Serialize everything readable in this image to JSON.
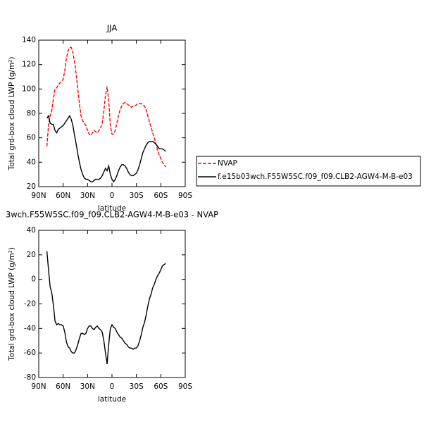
{
  "chart_data": [
    {
      "type": "line",
      "title": "JJA",
      "x_label": "latitude",
      "y_label": "Total grd-box cloud LWP (g/m²)",
      "x": [
        80,
        78,
        76,
        74,
        72,
        70,
        68,
        66,
        64,
        62,
        60,
        58,
        56,
        54,
        52,
        50,
        48,
        46,
        44,
        42,
        40,
        38,
        36,
        34,
        32,
        30,
        28,
        26,
        24,
        22,
        20,
        18,
        16,
        14,
        12,
        10,
        8,
        6,
        4,
        2,
        0,
        -2,
        -4,
        -6,
        -8,
        -10,
        -12,
        -14,
        -16,
        -18,
        -20,
        -22,
        -24,
        -26,
        -28,
        -30,
        -32,
        -34,
        -36,
        -38,
        -40,
        -42,
        -44,
        -46,
        -48,
        -50,
        -52,
        -54,
        -56,
        -58,
        -60,
        -62,
        -64,
        -66
      ],
      "series": [
        {
          "name": "NVAP",
          "color": "#ff0000",
          "style": "dashed",
          "values": [
            53,
            70,
            78,
            82,
            92,
            100,
            101,
            103,
            105,
            106,
            108,
            115,
            125,
            131,
            134,
            134,
            130,
            122,
            112,
            100,
            88,
            78,
            74,
            72,
            70,
            66,
            63,
            62,
            64,
            66,
            65,
            64,
            66,
            68,
            72,
            82,
            95,
            102,
            90,
            70,
            63,
            63,
            66,
            72,
            78,
            83,
            86,
            88,
            89,
            88,
            87,
            86,
            85,
            86,
            86,
            87,
            88,
            88,
            88,
            87,
            86,
            83,
            78,
            73,
            69,
            64,
            60,
            55,
            50,
            46,
            43,
            40,
            38,
            36
          ]
        },
        {
          "name": "f.e15b03wch.F55W5SC.f09_f09.CLB2-AGW4-M-B-e03",
          "color": "#000000",
          "style": "solid",
          "values": [
            76,
            78,
            72,
            71,
            71,
            66,
            64,
            67,
            68,
            69,
            70,
            72,
            74,
            76,
            78,
            75,
            70,
            62,
            55,
            47,
            40,
            34,
            30,
            27,
            26,
            26,
            25,
            24,
            24,
            25,
            26,
            26,
            26,
            27,
            29,
            32,
            35,
            33,
            37,
            30,
            26,
            24,
            26,
            29,
            33,
            36,
            38,
            38,
            37,
            35,
            32,
            30,
            29,
            29,
            30,
            31,
            34,
            38,
            43,
            48,
            51,
            54,
            56,
            57,
            57,
            57,
            56,
            55,
            53,
            51,
            51,
            51,
            50,
            49
          ]
        }
      ],
      "xlim": [
        90,
        -90
      ],
      "xticks": [
        {
          "value": 90,
          "label": "90N"
        },
        {
          "value": 60,
          "label": "60N"
        },
        {
          "value": 30,
          "label": "30N"
        },
        0,
        {
          "value": -30,
          "label": "30S"
        },
        {
          "value": -60,
          "label": "60S"
        },
        {
          "value": -90,
          "label": "90S"
        }
      ],
      "ylim": [
        20,
        140
      ],
      "yticks": [
        20,
        40,
        60,
        80,
        100,
        120,
        140
      ],
      "legend": "right"
    },
    {
      "type": "line",
      "title": "3wch.F55W5SC.f09_f09.CLB2-AGW4-M-B-e03 - NVAP",
      "x_label": "latitude",
      "y_label": "Total grd-box cloud LWP (g/m²)",
      "x": [
        80,
        78,
        76,
        74,
        72,
        70,
        68,
        66,
        64,
        62,
        60,
        58,
        56,
        54,
        52,
        50,
        48,
        46,
        44,
        42,
        40,
        38,
        36,
        34,
        32,
        30,
        28,
        26,
        24,
        22,
        20,
        18,
        16,
        14,
        12,
        10,
        8,
        6,
        4,
        2,
        0,
        -2,
        -4,
        -6,
        -8,
        -10,
        -12,
        -14,
        -16,
        -18,
        -20,
        -22,
        -24,
        -26,
        -28,
        -30,
        -32,
        -34,
        -36,
        -38,
        -40,
        -42,
        -44,
        -46,
        -48,
        -50,
        -52,
        -54,
        -56,
        -58,
        -60,
        -62,
        -64,
        -66
      ],
      "series": [
        {
          "color": "#000000",
          "style": "solid",
          "values": [
            23,
            8,
            -6,
            -11,
            -21,
            -34,
            -37,
            -36,
            -37,
            -37,
            -38,
            -43,
            -51,
            -55,
            -56,
            -59,
            -60,
            -60,
            -57,
            -53,
            -48,
            -44,
            -44,
            -45,
            -44,
            -40,
            -38,
            -38,
            -40,
            -41,
            -39,
            -38,
            -40,
            -41,
            -43,
            -50,
            -60,
            -69,
            -53,
            -40,
            -37,
            -39,
            -40,
            -43,
            -45,
            -47,
            -48,
            -50,
            -52,
            -53,
            -55,
            -56,
            -56,
            -57,
            -56,
            -56,
            -54,
            -50,
            -45,
            -39,
            -35,
            -29,
            -22,
            -16,
            -12,
            -7,
            -4,
            0,
            3,
            5,
            8,
            11,
            12,
            13
          ]
        }
      ],
      "xlim": [
        90,
        -90
      ],
      "xticks": [
        {
          "value": 90,
          "label": "90N"
        },
        {
          "value": 60,
          "label": "60N"
        },
        {
          "value": 30,
          "label": "30N"
        },
        0,
        {
          "value": -30,
          "label": "30S"
        },
        {
          "value": -60,
          "label": "60S"
        },
        {
          "value": -90,
          "label": "90S"
        }
      ],
      "ylim": [
        -80,
        40
      ],
      "yticks": [
        -80,
        -60,
        -40,
        -20,
        0,
        20,
        40
      ]
    }
  ]
}
